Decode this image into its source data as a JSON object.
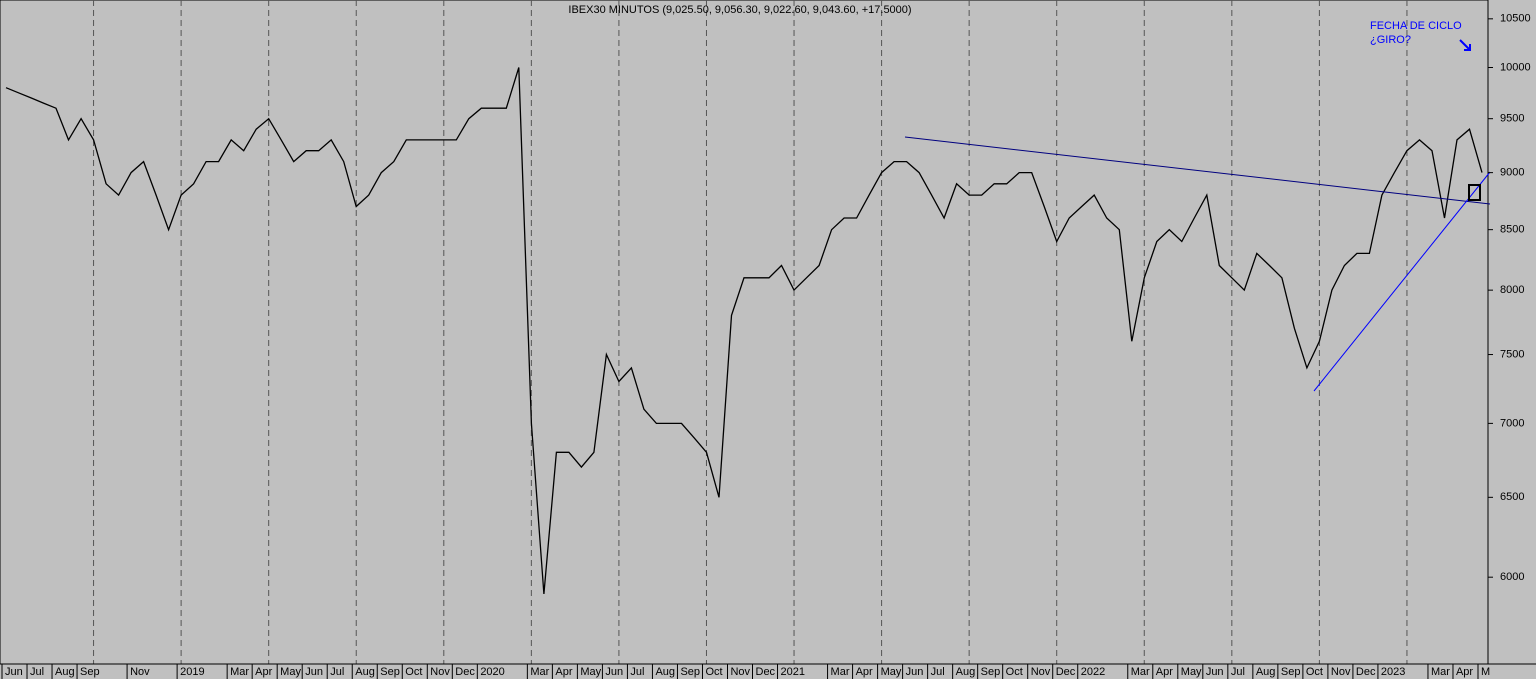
{
  "chart_data": {
    "type": "line",
    "title": "IBEX30 MINUTOS (9,025.50, 9,056.30, 9,022.60, 9,043.60, +17.5000)",
    "annotations": [
      "FECHA DE CICLO",
      "¿GIRO?"
    ],
    "log_scale": true,
    "categories": [
      "Jun",
      null,
      "Jul",
      null,
      "Aug",
      null,
      "Sep",
      null,
      null,
      null,
      "Nov",
      null,
      null,
      null,
      "2019",
      null,
      null,
      null,
      "Mar",
      null,
      "Apr",
      null,
      "May",
      null,
      "Jun",
      null,
      "Jul",
      null,
      "Aug",
      null,
      "Sep",
      null,
      "Oct",
      null,
      "Nov",
      null,
      "Dec",
      null,
      "2020",
      null,
      null,
      null,
      "Mar",
      null,
      "Apr",
      null,
      "May",
      null,
      "Jun",
      null,
      "Jul",
      null,
      "Aug",
      null,
      "Sep",
      null,
      "Oct",
      null,
      "Nov",
      null,
      "Dec",
      null,
      "2021",
      null,
      null,
      null,
      "Mar",
      null,
      "Apr",
      null,
      "May",
      null,
      "Jun",
      null,
      "Jul",
      null,
      "Aug",
      null,
      "Sep",
      null,
      "Oct",
      null,
      "Nov",
      null,
      "Dec",
      null,
      "2022",
      null,
      null,
      null,
      "Mar",
      null,
      "Apr",
      null,
      "May",
      null,
      "Jun",
      null,
      "Jul",
      null,
      "Aug",
      null,
      "Sep",
      null,
      "Oct",
      null,
      "Nov",
      null,
      "Dec",
      null,
      "2023",
      null,
      null,
      null,
      "Mar",
      null,
      "Apr",
      null,
      "M"
    ],
    "series": [
      {
        "color": "#000000",
        "values": [
          9800,
          9750,
          9700,
          9650,
          9600,
          9300,
          9500,
          9300,
          8900,
          8800,
          9000,
          9100,
          8800,
          8500,
          8800,
          8900,
          9100,
          9100,
          9300,
          9200,
          9400,
          9500,
          9300,
          9100,
          9200,
          9200,
          9300,
          9100,
          8700,
          8800,
          9000,
          9100,
          9300,
          9300,
          9300,
          9300,
          9300,
          9500,
          9600,
          9600,
          9600,
          10000,
          7000,
          5900,
          6800,
          6800,
          6700,
          6800,
          7500,
          7300,
          7400,
          7100,
          7000,
          7000,
          7000,
          6900,
          6800,
          6500,
          7800,
          8100,
          8100,
          8100,
          8200,
          8000,
          8100,
          8200,
          8500,
          8600,
          8600,
          8800,
          9000,
          9100,
          9100,
          9000,
          8800,
          8600,
          8900,
          8800,
          8800,
          8900,
          8900,
          9000,
          9000,
          8700,
          8400,
          8600,
          8700,
          8800,
          8600,
          8500,
          7600,
          8100,
          8400,
          8500,
          8400,
          8600,
          8800,
          8200,
          8100,
          8000,
          8300,
          8200,
          8100,
          7700,
          7400,
          7600,
          8000,
          8200,
          8300,
          8300,
          8800,
          9000,
          9200,
          9300,
          9200,
          8600,
          9300,
          9400,
          9000
        ]
      }
    ],
    "ylim": [
      5500,
      10700
    ],
    "yticks": [
      6000,
      6500,
      7000,
      7500,
      8000,
      8500,
      9000,
      9500,
      10000,
      10500
    ]
  }
}
